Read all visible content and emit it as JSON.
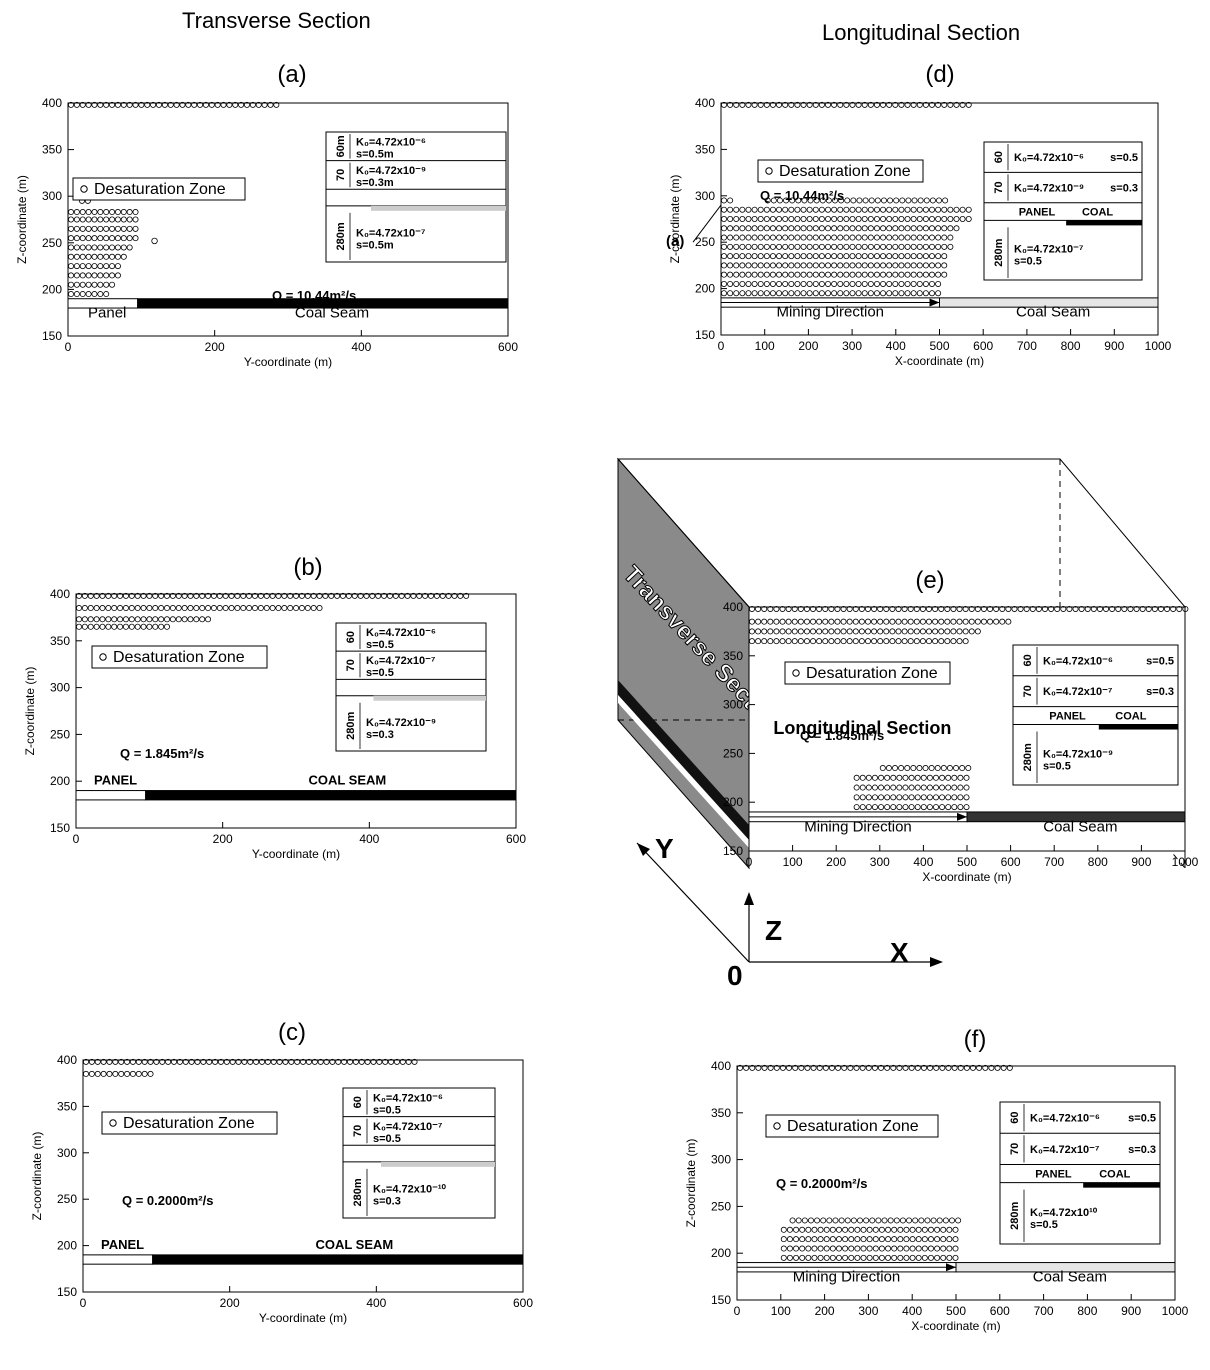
{
  "headers": {
    "left": "Transverse Section",
    "right": "Longitudinal Section"
  },
  "legend_label": "Desaturation Zone",
  "axis_labels": {
    "y": "Z-coordinate (m)",
    "x_transverse": "Y-coordinate (m)",
    "x_longitudinal": "X-coordinate (m)"
  },
  "cube": {
    "face_label": "Transverse Section",
    "section_label": "Longitudinal Section",
    "axis_y": "Y",
    "axis_z": "Z",
    "axis_x": "X",
    "origin": "0",
    "cut_marker": "(a)"
  },
  "chart_data": [
    {
      "id": "a",
      "type": "scatter",
      "panel_label": "(a)",
      "xlim": [
        0,
        600
      ],
      "ylim": [
        150,
        400
      ],
      "xticks": [
        "0",
        "200",
        "400",
        "600"
      ],
      "yticks": [
        "150",
        "200",
        "250",
        "300",
        "350",
        "400"
      ],
      "q_text": "Q = 10.44m²/s",
      "bottom_labels": [
        "Panel",
        "Coal Seam"
      ],
      "panel_end_x": 95,
      "inset_rows": [
        {
          "thickness": "60m",
          "k": "K₀=4.72x10⁻⁶",
          "s": "s=0.5m"
        },
        {
          "thickness": "70",
          "k": "K₀=4.72x10⁻⁹",
          "s": "s=0.3m"
        },
        {
          "thickness": "280m",
          "k": "K₀=4.72x10⁻⁷",
          "s": "s=0.5m"
        }
      ],
      "zone_rows": [
        {
          "y": 398,
          "x_from": 0,
          "x_to": 280,
          "step": 8
        },
        {
          "y": 295,
          "x_from": 15,
          "x_to": 30,
          "step": 8
        },
        {
          "y": 283,
          "x_from": 0,
          "x_to": 90,
          "step": 8
        },
        {
          "y": 275,
          "x_from": 0,
          "x_to": 90,
          "step": 8
        },
        {
          "y": 265,
          "x_from": 0,
          "x_to": 90,
          "step": 8
        },
        {
          "y": 255,
          "x_from": 0,
          "x_to": 90,
          "step": 8
        },
        {
          "y": 245,
          "x_from": 0,
          "x_to": 80,
          "step": 8
        },
        {
          "y": 235,
          "x_from": 0,
          "x_to": 75,
          "step": 8
        },
        {
          "y": 225,
          "x_from": 0,
          "x_to": 70,
          "step": 8
        },
        {
          "y": 215,
          "x_from": 0,
          "x_to": 70,
          "step": 8
        },
        {
          "y": 205,
          "x_from": 0,
          "x_to": 60,
          "step": 8
        },
        {
          "y": 195,
          "x_from": 0,
          "x_to": 55,
          "step": 8
        }
      ],
      "extra_points": [
        [
          118,
          252
        ]
      ]
    },
    {
      "id": "b",
      "type": "scatter",
      "panel_label": "(b)",
      "xlim": [
        0,
        600
      ],
      "ylim": [
        150,
        400
      ],
      "xticks": [
        "0",
        "200",
        "400",
        "600"
      ],
      "yticks": [
        "150",
        "200",
        "250",
        "300",
        "350",
        "400"
      ],
      "q_text": "Q = 1.845m²/s",
      "bottom_labels": [
        "PANEL",
        "COAL SEAM"
      ],
      "panel_end_x": 95,
      "inset_rows": [
        {
          "thickness": "60",
          "k": "K₀=4.72x10⁻⁶",
          "s": "s=0.5"
        },
        {
          "thickness": "70",
          "k": "K₀=4.72x10⁻⁷",
          "s": "s=0.5"
        },
        {
          "thickness": "280m",
          "k": "K₀=4.72x10⁻⁹",
          "s": "s=0.3"
        }
      ],
      "zone_rows": [
        {
          "y": 398,
          "x_from": 0,
          "x_to": 530,
          "step": 8
        },
        {
          "y": 385,
          "x_from": 0,
          "x_to": 330,
          "step": 8
        },
        {
          "y": 373,
          "x_from": 0,
          "x_to": 180,
          "step": 8
        },
        {
          "y": 365,
          "x_from": 0,
          "x_to": 120,
          "step": 8
        }
      ],
      "extra_points": []
    },
    {
      "id": "c",
      "type": "scatter",
      "panel_label": "(c)",
      "xlim": [
        0,
        600
      ],
      "ylim": [
        150,
        400
      ],
      "xticks": [
        "0",
        "200",
        "400",
        "600"
      ],
      "yticks": [
        "150",
        "200",
        "250",
        "300",
        "350",
        "400"
      ],
      "q_text": "Q = 0.2000m²/s",
      "bottom_labels": [
        "PANEL",
        "COAL SEAM"
      ],
      "panel_end_x": 95,
      "inset_rows": [
        {
          "thickness": "60",
          "k": "K₀=4.72x10⁻⁶",
          "s": "s=0.5"
        },
        {
          "thickness": "70",
          "k": "K₀=4.72x10⁻⁷",
          "s": "s=0.5"
        },
        {
          "thickness": "280m",
          "k": "K₀=4.72x10⁻¹⁰",
          "s": "s=0.3"
        }
      ],
      "zone_rows": [
        {
          "y": 398,
          "x_from": 0,
          "x_to": 450,
          "step": 8
        },
        {
          "y": 385,
          "x_from": 0,
          "x_to": 95,
          "step": 8
        }
      ],
      "extra_points": []
    },
    {
      "id": "d",
      "type": "scatter",
      "panel_label": "(d)",
      "xlim": [
        0,
        1000
      ],
      "ylim": [
        150,
        400
      ],
      "xticks": [
        "0",
        "100",
        "200",
        "300",
        "400",
        "500",
        "600",
        "700",
        "800",
        "900",
        "1000"
      ],
      "yticks": [
        "150",
        "200",
        "250",
        "300",
        "350",
        "400"
      ],
      "q_text": "Q = 10.44m²/s",
      "bottom_labels": [
        "Mining Direction",
        "Coal Seam"
      ],
      "top_labels": [
        "PANEL",
        "COAL"
      ],
      "panel_end_x": 500,
      "inset_rows": [
        {
          "thickness": "60",
          "k": "K₀=4.72x10⁻⁶",
          "s": "s=0.5"
        },
        {
          "thickness": "70",
          "k": "K₀=4.72x10⁻⁹",
          "s": "s=0.3"
        },
        {
          "thickness": "280m",
          "k": "K₀=4.72x10⁻⁷",
          "s": "s=0.5"
        }
      ],
      "zone_rows": [
        {
          "y": 398,
          "x_from": 0,
          "x_to": 570,
          "step": 14
        },
        {
          "y": 295,
          "x_from": 0,
          "x_to": 20,
          "step": 14
        },
        {
          "y": 295,
          "x_from": 100,
          "x_to": 510,
          "step": 14
        },
        {
          "y": 285,
          "x_from": 0,
          "x_to": 570,
          "step": 14
        },
        {
          "y": 275,
          "x_from": 0,
          "x_to": 570,
          "step": 14
        },
        {
          "y": 265,
          "x_from": 0,
          "x_to": 540,
          "step": 14
        },
        {
          "y": 255,
          "x_from": 0,
          "x_to": 520,
          "step": 14
        },
        {
          "y": 245,
          "x_from": 0,
          "x_to": 520,
          "step": 14
        },
        {
          "y": 235,
          "x_from": 0,
          "x_to": 510,
          "step": 14
        },
        {
          "y": 225,
          "x_from": 0,
          "x_to": 510,
          "step": 14
        },
        {
          "y": 215,
          "x_from": 0,
          "x_to": 510,
          "step": 14
        },
        {
          "y": 205,
          "x_from": 0,
          "x_to": 500,
          "step": 14
        },
        {
          "y": 195,
          "x_from": 0,
          "x_to": 500,
          "step": 14
        }
      ],
      "extra_points": []
    },
    {
      "id": "e",
      "type": "scatter",
      "panel_label": "(e)",
      "xlim": [
        0,
        1000
      ],
      "ylim": [
        150,
        400
      ],
      "xticks": [
        "0",
        "100",
        "200",
        "300",
        "400",
        "500",
        "600",
        "700",
        "800",
        "900",
        "1000"
      ],
      "yticks": [
        "150",
        "200",
        "250",
        "300",
        "350",
        "400"
      ],
      "q_text": "Q = 1.845m²/s",
      "bottom_labels": [
        "Mining Direction",
        "Coal Seam"
      ],
      "top_labels": [
        "PANEL",
        "COAL"
      ],
      "panel_end_x": 500,
      "inset_rows": [
        {
          "thickness": "60",
          "k": "K₀=4.72x10⁻⁶",
          "s": "s=0.5"
        },
        {
          "thickness": "70",
          "k": "K₀=4.72x10⁻⁷",
          "s": "s=0.3"
        },
        {
          "thickness": "280m",
          "k": "K₀=4.72x10⁻⁹",
          "s": "s=0.5"
        }
      ],
      "zone_rows": [
        {
          "y": 398,
          "x_from": 0,
          "x_to": 1000,
          "step": 14
        },
        {
          "y": 385,
          "x_from": 0,
          "x_to": 600,
          "step": 14
        },
        {
          "y": 375,
          "x_from": 0,
          "x_to": 520,
          "step": 14
        },
        {
          "y": 365,
          "x_from": 0,
          "x_to": 500,
          "step": 14
        },
        {
          "y": 235,
          "x_from": 300,
          "x_to": 500,
          "step": 14
        },
        {
          "y": 225,
          "x_from": 240,
          "x_to": 500,
          "step": 14
        },
        {
          "y": 215,
          "x_from": 240,
          "x_to": 500,
          "step": 14
        },
        {
          "y": 205,
          "x_from": 240,
          "x_to": 500,
          "step": 14
        },
        {
          "y": 195,
          "x_from": 240,
          "x_to": 500,
          "step": 14
        }
      ],
      "extra_points": []
    },
    {
      "id": "f",
      "type": "scatter",
      "panel_label": "(f)",
      "xlim": [
        0,
        1000
      ],
      "ylim": [
        150,
        400
      ],
      "xticks": [
        "0",
        "100",
        "200",
        "300",
        "400",
        "500",
        "600",
        "700",
        "800",
        "900",
        "1000"
      ],
      "yticks": [
        "150",
        "200",
        "250",
        "300",
        "350",
        "400"
      ],
      "q_text": "Q = 0.2000m²/s",
      "bottom_labels": [
        "Mining Direction",
        "Coal Seam"
      ],
      "top_labels": [
        "PANEL",
        "COAL"
      ],
      "panel_end_x": 500,
      "inset_rows": [
        {
          "thickness": "60",
          "k": "K₀=4.72x10⁻⁶",
          "s": "s=0.5"
        },
        {
          "thickness": "70",
          "k": "K₀=4.72x10⁻⁷",
          "s": "s=0.3"
        },
        {
          "thickness": "280m",
          "k": "K₀=4.72x10¹⁰",
          "s": "s=0.5"
        }
      ],
      "zone_rows": [
        {
          "y": 398,
          "x_from": 0,
          "x_to": 620,
          "step": 14
        },
        {
          "y": 235,
          "x_from": 120,
          "x_to": 500,
          "step": 14
        },
        {
          "y": 225,
          "x_from": 100,
          "x_to": 500,
          "step": 14
        },
        {
          "y": 215,
          "x_from": 100,
          "x_to": 500,
          "step": 14
        },
        {
          "y": 205,
          "x_from": 100,
          "x_to": 500,
          "step": 14
        },
        {
          "y": 195,
          "x_from": 100,
          "x_to": 500,
          "step": 14
        }
      ],
      "extra_points": []
    }
  ]
}
